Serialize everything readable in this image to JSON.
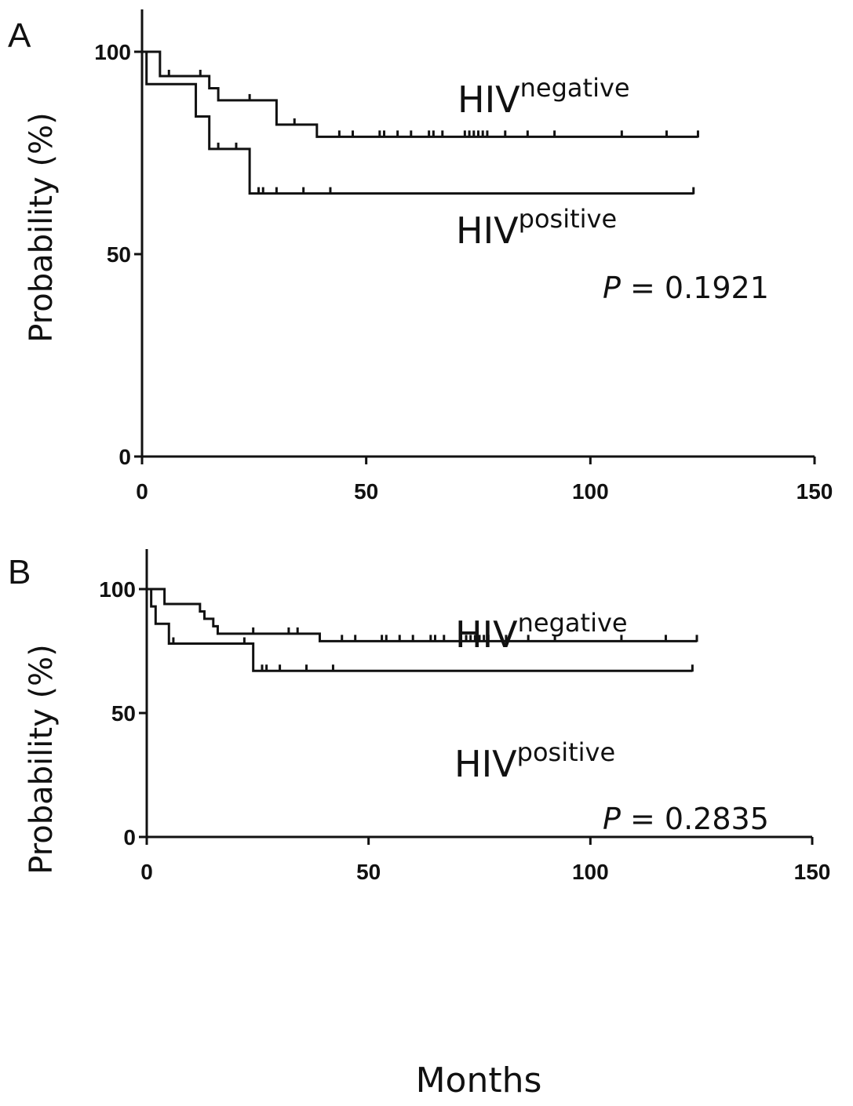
{
  "chart_data": [
    {
      "type": "line",
      "panel": "A",
      "ylabel": "Probability (%)",
      "xlabel": "",
      "xlim": [
        0,
        150
      ],
      "ylim": [
        0,
        100
      ],
      "x_ticks": [
        0,
        50,
        100,
        150
      ],
      "y_ticks": [
        0,
        50,
        100
      ],
      "p_value": "P = 0.1921",
      "p_symbol": "P",
      "p_text": " = 0.1921",
      "series": [
        {
          "name": "HIVnegative",
          "label_main": "HIV",
          "label_sup": "negative",
          "steps": [
            [
              0,
              100
            ],
            [
              4,
              94
            ],
            [
              15,
              91
            ],
            [
              17,
              88
            ],
            [
              30,
              82
            ],
            [
              39,
              79
            ],
            [
              124,
              79
            ]
          ],
          "censored": [
            [
              6,
              94
            ],
            [
              13,
              94
            ],
            [
              24,
              88
            ],
            [
              34,
              82
            ],
            [
              44,
              79
            ],
            [
              47,
              79
            ],
            [
              53,
              79
            ],
            [
              54,
              79
            ],
            [
              57,
              79
            ],
            [
              60,
              79
            ],
            [
              64,
              79
            ],
            [
              65,
              79
            ],
            [
              67,
              79
            ],
            [
              72,
              79
            ],
            [
              73,
              79
            ],
            [
              74,
              79
            ],
            [
              75,
              79
            ],
            [
              76,
              79
            ],
            [
              77,
              79
            ],
            [
              81,
              79
            ],
            [
              86,
              79
            ],
            [
              92,
              79
            ],
            [
              107,
              79
            ],
            [
              117,
              79
            ],
            [
              124,
              79
            ]
          ]
        },
        {
          "name": "HIVpositive",
          "label_main": "HIV",
          "label_sup": "positive",
          "steps": [
            [
              0,
              100
            ],
            [
              1,
              92
            ],
            [
              12,
              84
            ],
            [
              15,
              76
            ],
            [
              24,
              65
            ],
            [
              123,
              65
            ]
          ],
          "censored": [
            [
              17,
              76
            ],
            [
              21,
              76
            ],
            [
              26,
              65
            ],
            [
              27,
              65
            ],
            [
              30,
              65
            ],
            [
              36,
              65
            ],
            [
              42,
              65
            ],
            [
              123,
              65
            ]
          ]
        }
      ]
    },
    {
      "type": "line",
      "panel": "B",
      "ylabel": "Probability (%)",
      "xlabel": "Months",
      "xlim": [
        0,
        150
      ],
      "ylim": [
        0,
        100
      ],
      "x_ticks": [
        0,
        50,
        100,
        150
      ],
      "y_ticks": [
        0,
        50,
        100
      ],
      "p_value": "P = 0.2835",
      "p_symbol": "P",
      "p_text": " = 0.2835",
      "series": [
        {
          "name": "HIVnegative",
          "label_main": "HIV",
          "label_sup": "negative",
          "steps": [
            [
              0,
              100
            ],
            [
              4,
              94
            ],
            [
              12,
              91
            ],
            [
              13,
              88
            ],
            [
              15,
              85
            ],
            [
              16,
              82
            ],
            [
              39,
              79
            ],
            [
              124,
              79
            ]
          ],
          "censored": [
            [
              24,
              82
            ],
            [
              32,
              82
            ],
            [
              34,
              82
            ],
            [
              44,
              79
            ],
            [
              47,
              79
            ],
            [
              53,
              79
            ],
            [
              54,
              79
            ],
            [
              57,
              79
            ],
            [
              60,
              79
            ],
            [
              64,
              79
            ],
            [
              65,
              79
            ],
            [
              67,
              79
            ],
            [
              72,
              79
            ],
            [
              73,
              79
            ],
            [
              74,
              79
            ],
            [
              75,
              79
            ],
            [
              76,
              79
            ],
            [
              77,
              79
            ],
            [
              81,
              79
            ],
            [
              86,
              79
            ],
            [
              92,
              79
            ],
            [
              107,
              79
            ],
            [
              117,
              79
            ],
            [
              124,
              79
            ]
          ]
        },
        {
          "name": "HIVpositive",
          "label_main": "HIV",
          "label_sup": "positive",
          "steps": [
            [
              0,
              100
            ],
            [
              1,
              93
            ],
            [
              2,
              86
            ],
            [
              5,
              78
            ],
            [
              24,
              67
            ],
            [
              123,
              67
            ]
          ],
          "censored": [
            [
              6,
              78
            ],
            [
              22,
              78
            ],
            [
              26,
              67
            ],
            [
              27,
              67
            ],
            [
              30,
              67
            ],
            [
              36,
              67
            ],
            [
              42,
              67
            ],
            [
              123,
              67
            ]
          ]
        }
      ]
    }
  ]
}
